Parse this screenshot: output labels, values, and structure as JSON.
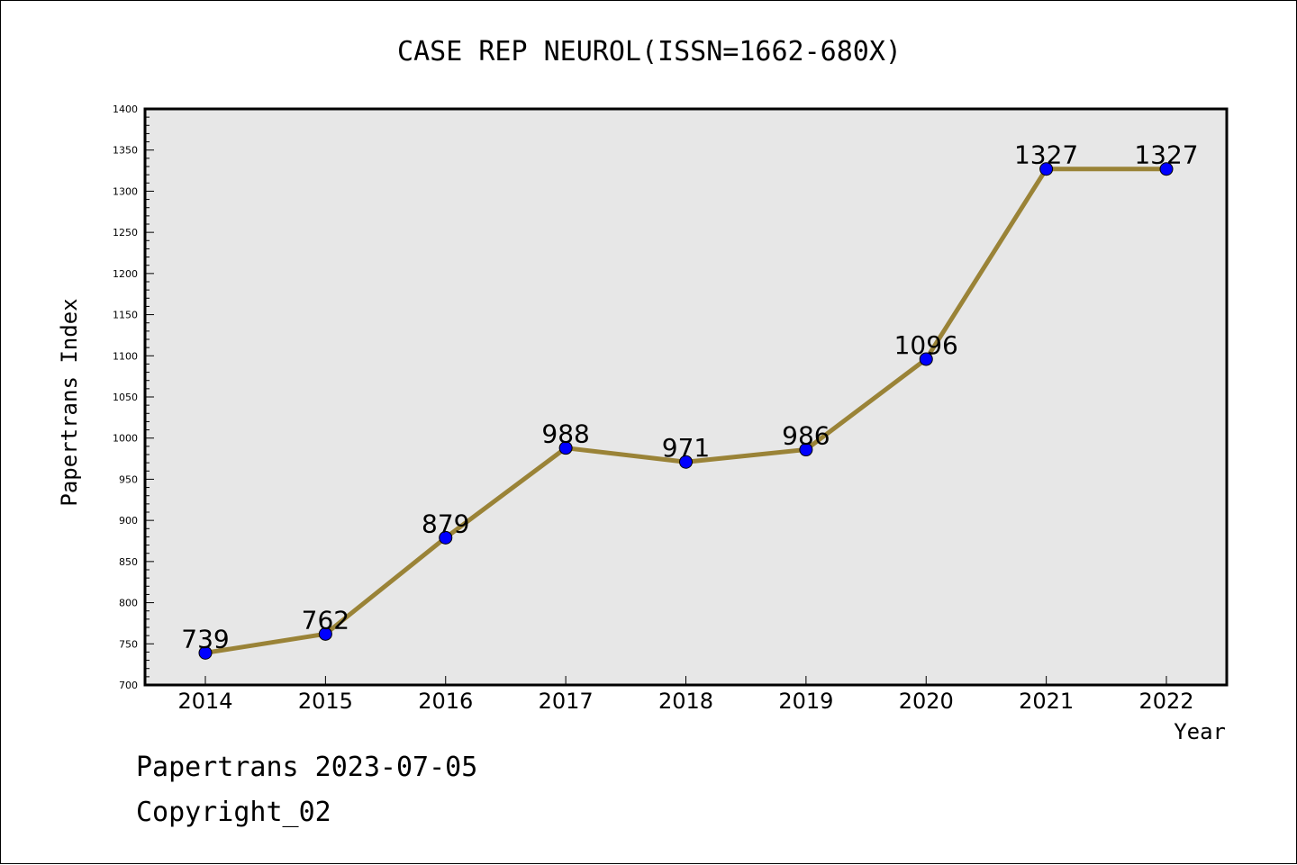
{
  "chart_data": {
    "type": "line",
    "title": "CASE REP NEUROL(ISSN=1662-680X)",
    "xlabel": "Year",
    "ylabel": "Papertrans Index",
    "x": [
      "2014",
      "2015",
      "2016",
      "2017",
      "2018",
      "2019",
      "2020",
      "2021",
      "2022"
    ],
    "series": [
      {
        "values": [
          739,
          762,
          879,
          988,
          971,
          986,
          1096,
          1327,
          1327
        ],
        "labels": [
          "739",
          "762",
          "879",
          "988",
          "971",
          "986",
          "1096",
          "1327",
          "1327"
        ]
      }
    ],
    "ylim": [
      700,
      1400
    ],
    "yticks": [
      "700",
      "750",
      "800",
      "850",
      "900",
      "950",
      "1000",
      "1050",
      "1100",
      "1150",
      "1200",
      "1250",
      "1300",
      "1350",
      "1400"
    ],
    "ytick_values": [
      700,
      750,
      800,
      850,
      900,
      950,
      1000,
      1050,
      1100,
      1150,
      1200,
      1250,
      1300,
      1350,
      1400
    ],
    "grid": false,
    "colors": {
      "line": "#9a8337",
      "marker": "#0000ff",
      "plot_background": "#e7e7e7"
    }
  },
  "footer": {
    "date_text": "Papertrans 2023-07-05",
    "copyright_text": "Copyright_02"
  }
}
